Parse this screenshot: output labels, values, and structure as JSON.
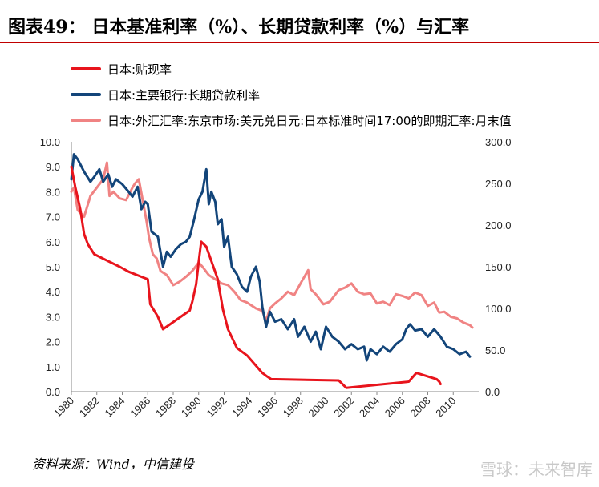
{
  "header": {
    "title": "图表49：  日本基准利率（%）、长期贷款利率（%）与汇率"
  },
  "footer": {
    "source": "资料来源：Wind，中信建投",
    "watermark": "雪球：未来智库"
  },
  "chart_data": {
    "type": "line",
    "title": "图表49：  日本基准利率（%）、长期贷款利率（%）与汇率",
    "xlabel": "",
    "ylabel": "",
    "x_ticks": [
      "1980",
      "1982",
      "1984",
      "1986",
      "1988",
      "1990",
      "1992",
      "1994",
      "1996",
      "1998",
      "2000",
      "2002",
      "2004",
      "2006",
      "2008",
      "2010"
    ],
    "xlim": [
      1980,
      2012
    ],
    "y_left": {
      "lim": [
        0,
        10
      ],
      "ticks": [
        "0.0",
        "1.0",
        "2.0",
        "3.0",
        "4.0",
        "5.0",
        "6.0",
        "7.0",
        "8.0",
        "9.0",
        "10.0"
      ]
    },
    "y_right": {
      "lim": [
        0,
        300
      ],
      "ticks": [
        "0.0",
        "50.0",
        "100.0",
        "150.0",
        "200.0",
        "250.0",
        "300.0"
      ]
    },
    "grid": false,
    "legend_position": "top-left",
    "series": [
      {
        "name": "日本:贴现率",
        "axis": "left",
        "color": "#e8141c",
        "x": [
          1980,
          1980.3,
          1980.7,
          1981.0,
          1981.3,
          1981.8,
          1983.0,
          1983.8,
          1984.5,
          1985.5,
          1986.0,
          1986.2,
          1986.8,
          1987.2,
          1989.3,
          1989.5,
          1989.8,
          1990.0,
          1990.2,
          1990.6,
          1991.5,
          1991.9,
          1992.3,
          1993.0,
          1993.8,
          1995.0,
          1995.4,
          1995.7,
          2001.0,
          2001.2,
          2001.6,
          2006.5,
          2007.1,
          2008.7,
          2008.9,
          2009.0
        ],
        "y": [
          9.0,
          8.2,
          7.3,
          6.3,
          5.9,
          5.5,
          5.2,
          5.0,
          4.8,
          4.6,
          4.5,
          3.5,
          3.0,
          2.5,
          3.25,
          3.6,
          4.3,
          5.2,
          6.0,
          5.8,
          4.5,
          3.3,
          2.5,
          1.75,
          1.45,
          0.75,
          0.6,
          0.5,
          0.45,
          0.35,
          0.15,
          0.4,
          0.75,
          0.5,
          0.4,
          0.3
        ]
      },
      {
        "name": "日本:主要银行:长期贷款利率",
        "axis": "left",
        "color": "#13457a",
        "x": [
          1980,
          1980.2,
          1980.5,
          1981.0,
          1981.5,
          1981.8,
          1982.2,
          1982.5,
          1982.9,
          1983.2,
          1983.5,
          1984.0,
          1984.5,
          1984.8,
          1985.2,
          1985.5,
          1985.8,
          1986.0,
          1986.3,
          1986.8,
          1987.2,
          1987.5,
          1987.8,
          1988.2,
          1988.6,
          1989.0,
          1989.3,
          1989.6,
          1990.0,
          1990.3,
          1990.5,
          1990.6,
          1990.8,
          1991.0,
          1991.3,
          1991.5,
          1991.8,
          1992.0,
          1992.3,
          1992.6,
          1993.0,
          1993.4,
          1993.8,
          1994.1,
          1994.5,
          1994.8,
          1995.0,
          1995.3,
          1995.6,
          1996.0,
          1996.5,
          1997.0,
          1997.5,
          1997.8,
          1998.3,
          1998.8,
          1999.2,
          1999.6,
          2000.0,
          2000.5,
          2001.0,
          2001.5,
          2002.0,
          2002.5,
          2003.0,
          2003.2,
          2003.5,
          2004.0,
          2004.5,
          2005.0,
          2005.5,
          2006.0,
          2006.3,
          2006.6,
          2007.0,
          2007.5,
          2008.0,
          2008.5,
          2009.0,
          2009.5,
          2010.0,
          2010.5,
          2011.0,
          2011.3
        ],
        "y": [
          8.5,
          9.5,
          9.3,
          8.8,
          8.4,
          8.6,
          8.9,
          8.4,
          8.7,
          8.2,
          8.5,
          8.3,
          8.0,
          7.8,
          8.2,
          7.3,
          7.6,
          7.5,
          6.4,
          6.2,
          5.0,
          5.6,
          5.4,
          5.7,
          5.9,
          6.0,
          6.2,
          6.8,
          7.7,
          8.0,
          8.6,
          8.9,
          7.5,
          8.0,
          7.6,
          6.7,
          6.9,
          5.8,
          6.2,
          5.0,
          4.7,
          4.2,
          4.0,
          4.6,
          5.0,
          4.4,
          3.4,
          2.6,
          3.2,
          2.8,
          2.9,
          2.5,
          2.9,
          2.2,
          2.6,
          2.0,
          2.4,
          1.7,
          2.6,
          2.2,
          2.0,
          1.7,
          1.9,
          1.7,
          1.8,
          1.25,
          1.7,
          1.5,
          1.8,
          1.6,
          1.9,
          2.1,
          2.5,
          2.7,
          2.45,
          2.5,
          2.2,
          2.5,
          2.2,
          1.8,
          1.7,
          1.5,
          1.6,
          1.4
        ]
      },
      {
        "name": "日本:外汇汇率:东京市场:美元兑日元:日本标准时间17:00的即期汇率:月末值",
        "axis": "right",
        "color": "#f08383",
        "x": [
          1980,
          1980.2,
          1980.5,
          1981.0,
          1981.5,
          1982.0,
          1982.5,
          1982.8,
          1983.0,
          1983.3,
          1983.8,
          1984.3,
          1984.8,
          1985.0,
          1985.3,
          1985.6,
          1985.9,
          1986.1,
          1986.4,
          1986.7,
          1987.0,
          1987.5,
          1988.0,
          1988.5,
          1989.0,
          1989.5,
          1990.0,
          1990.3,
          1990.8,
          1991.3,
          1991.8,
          1992.3,
          1992.8,
          1993.3,
          1993.8,
          1994.5,
          1995.0,
          1995.3,
          1995.6,
          1996.0,
          1996.5,
          1997.0,
          1997.5,
          1998.0,
          1998.6,
          1998.8,
          1999.2,
          1999.8,
          2000.3,
          2001.0,
          2001.5,
          2002.0,
          2002.5,
          2003.0,
          2003.5,
          2004.0,
          2004.5,
          2005.0,
          2005.5,
          2006.0,
          2006.5,
          2007.0,
          2007.5,
          2008.0,
          2008.5,
          2008.9,
          2009.3,
          2009.8,
          2010.3,
          2010.8,
          2011.3,
          2011.5
        ],
        "y": [
          240,
          245,
          218,
          210,
          235,
          245,
          255,
          275,
          235,
          240,
          232,
          230,
          245,
          250,
          255,
          230,
          205,
          185,
          165,
          160,
          145,
          140,
          128,
          132,
          138,
          145,
          155,
          150,
          140,
          135,
          130,
          128,
          120,
          110,
          107,
          100,
          97,
          85,
          100,
          106,
          112,
          120,
          116,
          130,
          146,
          123,
          117,
          105,
          108,
          122,
          125,
          130,
          120,
          117,
          118,
          106,
          108,
          104,
          117,
          115,
          112,
          119,
          116,
          103,
          107,
          95,
          96,
          90,
          88,
          83,
          80,
          77
        ]
      }
    ]
  }
}
